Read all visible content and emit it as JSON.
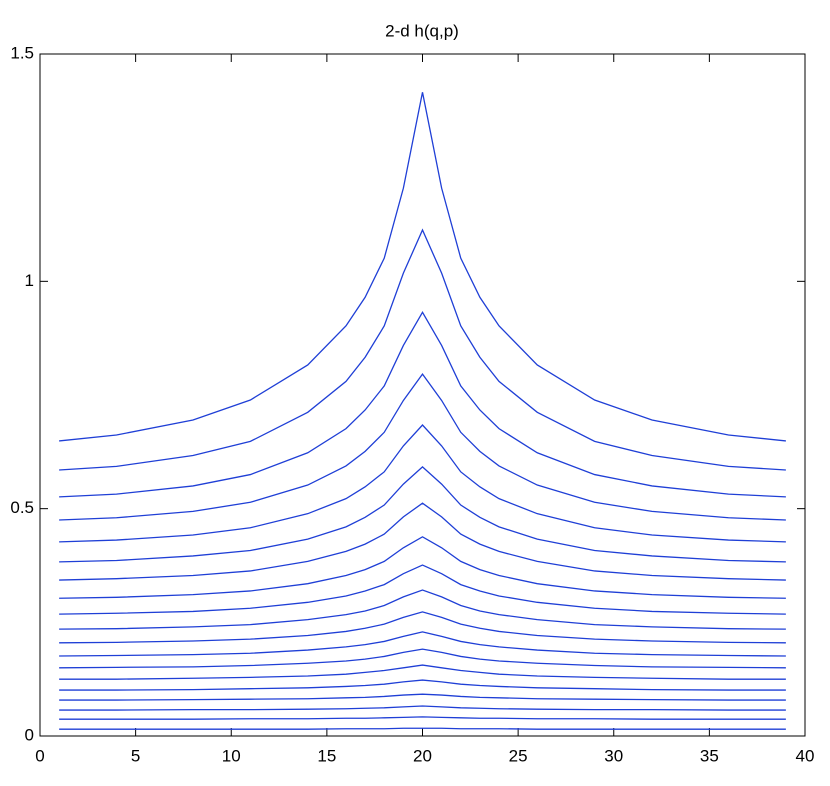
{
  "chart_data": {
    "type": "line",
    "title": "2-d h(q,p)",
    "x": [
      1,
      4,
      8,
      11,
      14,
      16,
      17,
      18,
      19,
      20,
      21,
      22,
      23,
      24,
      26,
      29,
      32,
      36,
      39
    ],
    "color": "#1f3fd6",
    "series": [
      {
        "values": [
          0.649,
          0.662,
          0.695,
          0.739,
          0.816,
          0.902,
          0.965,
          1.051,
          1.205,
          1.416,
          1.205,
          1.051,
          0.965,
          0.902,
          0.816,
          0.739,
          0.695,
          0.662,
          0.649
        ]
      },
      {
        "values": [
          0.585,
          0.593,
          0.617,
          0.648,
          0.712,
          0.78,
          0.833,
          0.902,
          1.018,
          1.113,
          1.018,
          0.902,
          0.833,
          0.78,
          0.712,
          0.648,
          0.617,
          0.593,
          0.585
        ]
      },
      {
        "values": [
          0.526,
          0.532,
          0.55,
          0.575,
          0.623,
          0.676,
          0.717,
          0.77,
          0.859,
          0.932,
          0.859,
          0.77,
          0.717,
          0.676,
          0.623,
          0.575,
          0.55,
          0.532,
          0.526
        ]
      },
      {
        "values": [
          0.475,
          0.48,
          0.494,
          0.514,
          0.552,
          0.594,
          0.626,
          0.668,
          0.738,
          0.796,
          0.738,
          0.668,
          0.626,
          0.594,
          0.552,
          0.514,
          0.494,
          0.48,
          0.475
        ]
      },
      {
        "values": [
          0.427,
          0.431,
          0.442,
          0.458,
          0.489,
          0.522,
          0.548,
          0.581,
          0.638,
          0.684,
          0.638,
          0.581,
          0.548,
          0.522,
          0.489,
          0.458,
          0.442,
          0.431,
          0.427
        ]
      },
      {
        "values": [
          0.383,
          0.386,
          0.396,
          0.408,
          0.433,
          0.46,
          0.481,
          0.508,
          0.554,
          0.592,
          0.554,
          0.508,
          0.481,
          0.46,
          0.433,
          0.408,
          0.396,
          0.386,
          0.383
        ]
      },
      {
        "values": [
          0.343,
          0.346,
          0.353,
          0.363,
          0.384,
          0.406,
          0.422,
          0.444,
          0.482,
          0.512,
          0.482,
          0.444,
          0.422,
          0.406,
          0.384,
          0.363,
          0.353,
          0.346,
          0.343
        ]
      },
      {
        "values": [
          0.303,
          0.305,
          0.311,
          0.319,
          0.335,
          0.353,
          0.366,
          0.384,
          0.414,
          0.438,
          0.414,
          0.384,
          0.366,
          0.353,
          0.335,
          0.319,
          0.311,
          0.305,
          0.303
        ]
      },
      {
        "values": [
          0.268,
          0.27,
          0.274,
          0.281,
          0.294,
          0.308,
          0.319,
          0.333,
          0.357,
          0.376,
          0.357,
          0.333,
          0.319,
          0.308,
          0.294,
          0.281,
          0.274,
          0.27,
          0.268
        ]
      },
      {
        "values": [
          0.235,
          0.236,
          0.24,
          0.245,
          0.256,
          0.267,
          0.275,
          0.287,
          0.306,
          0.321,
          0.306,
          0.287,
          0.275,
          0.267,
          0.256,
          0.245,
          0.24,
          0.236,
          0.235
        ]
      },
      {
        "values": [
          0.205,
          0.206,
          0.209,
          0.213,
          0.221,
          0.23,
          0.237,
          0.246,
          0.261,
          0.273,
          0.261,
          0.246,
          0.237,
          0.23,
          0.221,
          0.213,
          0.209,
          0.206,
          0.205
        ]
      },
      {
        "values": [
          0.176,
          0.177,
          0.179,
          0.182,
          0.189,
          0.196,
          0.201,
          0.208,
          0.219,
          0.229,
          0.219,
          0.208,
          0.201,
          0.196,
          0.189,
          0.182,
          0.179,
          0.177,
          0.176
        ]
      },
      {
        "values": [
          0.15,
          0.151,
          0.152,
          0.155,
          0.16,
          0.165,
          0.169,
          0.175,
          0.184,
          0.191,
          0.184,
          0.175,
          0.169,
          0.165,
          0.16,
          0.155,
          0.152,
          0.151,
          0.15
        ]
      },
      {
        "values": [
          0.125,
          0.125,
          0.127,
          0.129,
          0.132,
          0.136,
          0.14,
          0.144,
          0.15,
          0.156,
          0.15,
          0.144,
          0.14,
          0.136,
          0.132,
          0.129,
          0.127,
          0.125,
          0.125
        ]
      },
      {
        "values": [
          0.101,
          0.101,
          0.102,
          0.104,
          0.106,
          0.109,
          0.111,
          0.114,
          0.119,
          0.123,
          0.119,
          0.114,
          0.111,
          0.109,
          0.106,
          0.104,
          0.102,
          0.101,
          0.101
        ]
      },
      {
        "values": [
          0.079,
          0.079,
          0.08,
          0.081,
          0.082,
          0.084,
          0.085,
          0.087,
          0.09,
          0.092,
          0.09,
          0.087,
          0.085,
          0.084,
          0.082,
          0.081,
          0.08,
          0.079,
          0.079
        ]
      },
      {
        "values": [
          0.057,
          0.057,
          0.058,
          0.058,
          0.059,
          0.06,
          0.061,
          0.062,
          0.064,
          0.066,
          0.064,
          0.062,
          0.061,
          0.06,
          0.059,
          0.058,
          0.058,
          0.057,
          0.057
        ]
      },
      {
        "values": [
          0.037,
          0.037,
          0.037,
          0.038,
          0.038,
          0.039,
          0.039,
          0.04,
          0.041,
          0.042,
          0.041,
          0.04,
          0.039,
          0.039,
          0.038,
          0.038,
          0.037,
          0.037,
          0.037
        ]
      },
      {
        "values": [
          0.015,
          0.015,
          0.015,
          0.015,
          0.015,
          0.016,
          0.016,
          0.016,
          0.017,
          0.017,
          0.017,
          0.016,
          0.016,
          0.016,
          0.015,
          0.015,
          0.015,
          0.015,
          0.015
        ]
      }
    ],
    "xlim": [
      0,
      40
    ],
    "xticks": [
      0,
      5,
      10,
      15,
      20,
      25,
      30,
      35,
      40
    ],
    "ylim": [
      0,
      1.5
    ],
    "yticks": [
      0,
      0.5,
      1,
      1.5
    ],
    "grid": false,
    "box": true
  }
}
